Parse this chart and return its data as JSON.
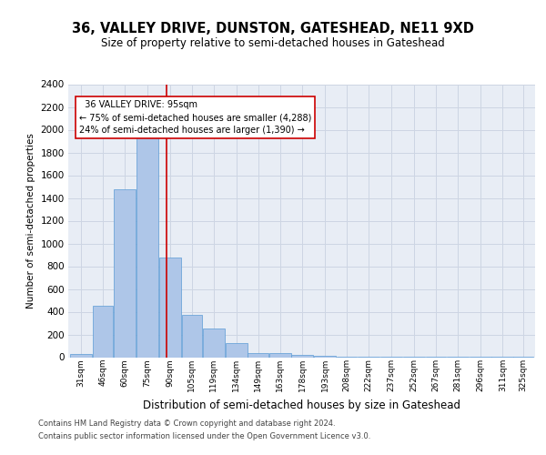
{
  "title": "36, VALLEY DRIVE, DUNSTON, GATESHEAD, NE11 9XD",
  "subtitle": "Size of property relative to semi-detached houses in Gateshead",
  "xlabel": "Distribution of semi-detached houses by size in Gateshead",
  "ylabel": "Number of semi-detached properties",
  "annotation_text_line1": "  36 VALLEY DRIVE: 95sqm  ",
  "annotation_text_line2": "← 75% of semi-detached houses are smaller (4,288)",
  "annotation_text_line3": "24% of semi-detached houses are larger (1,390) →",
  "categories": [
    "31sqm",
    "46sqm",
    "60sqm",
    "75sqm",
    "90sqm",
    "105sqm",
    "119sqm",
    "134sqm",
    "149sqm",
    "163sqm",
    "178sqm",
    "193sqm",
    "208sqm",
    "222sqm",
    "237sqm",
    "252sqm",
    "267sqm",
    "281sqm",
    "296sqm",
    "311sqm",
    "325sqm"
  ],
  "bar_left_edges": [
    31,
    46,
    60,
    75,
    90,
    105,
    119,
    134,
    149,
    163,
    178,
    193,
    208,
    222,
    237,
    252,
    267,
    281,
    296,
    311,
    325
  ],
  "bar_widths": [
    15,
    14,
    15,
    15,
    15,
    14,
    15,
    15,
    14,
    15,
    15,
    15,
    14,
    15,
    15,
    15,
    14,
    15,
    15,
    15,
    14
  ],
  "bar_heights": [
    30,
    450,
    1480,
    2000,
    880,
    375,
    255,
    125,
    35,
    35,
    20,
    10,
    5,
    5,
    3,
    2,
    1,
    1,
    1,
    1,
    1
  ],
  "bar_color": "#aec6e8",
  "bar_edge_color": "#5b9bd5",
  "vline_x": 95,
  "vline_color": "#cc0000",
  "ylim": [
    0,
    2400
  ],
  "yticks": [
    0,
    200,
    400,
    600,
    800,
    1000,
    1200,
    1400,
    1600,
    1800,
    2000,
    2200,
    2400
  ],
  "grid_color": "#cdd5e3",
  "plot_bg_color": "#e8edf5",
  "footer_line1": "Contains HM Land Registry data © Crown copyright and database right 2024.",
  "footer_line2": "Contains public sector information licensed under the Open Government Licence v3.0."
}
